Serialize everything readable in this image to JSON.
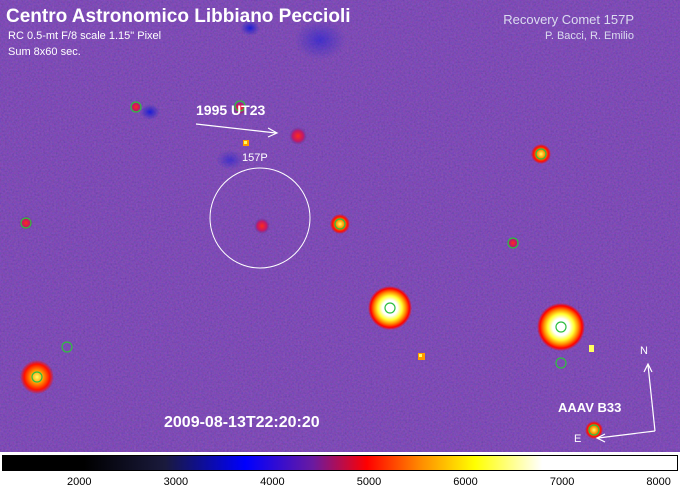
{
  "header": {
    "title": "Centro Astronomico Libbiano Peccioli",
    "instrument": "RC 0.5-mt F/8 scale 1.15\" Pixel",
    "exposure": "Sum 8x60 sec."
  },
  "recovery": {
    "title": "Recovery Comet 157P",
    "authors": "P. Bacci, R. Emilio"
  },
  "labels": {
    "asteroid": "1995 UT23",
    "comet": "157P",
    "reference": "AAAV B33",
    "north": "N",
    "east": "E"
  },
  "timestamp": "2009-08-13T22:20:20",
  "colorbar": {
    "tick_labels": [
      "2000",
      "3000",
      "4000",
      "5000",
      "6000",
      "7000",
      "8000"
    ],
    "tick_values": [
      2000,
      3000,
      4000,
      5000,
      6000,
      7000,
      8000
    ],
    "range": [
      1200,
      8200
    ],
    "colormap": [
      "#000000",
      "#1a1a3c",
      "#0000ff",
      "#6a1aa0",
      "#ff0000",
      "#ff8c00",
      "#ffff00",
      "#ffffff"
    ]
  },
  "colors": {
    "sky_background": "#58329a",
    "marker_circle": "#2fbf3f",
    "annotation": "#ffffff"
  }
}
